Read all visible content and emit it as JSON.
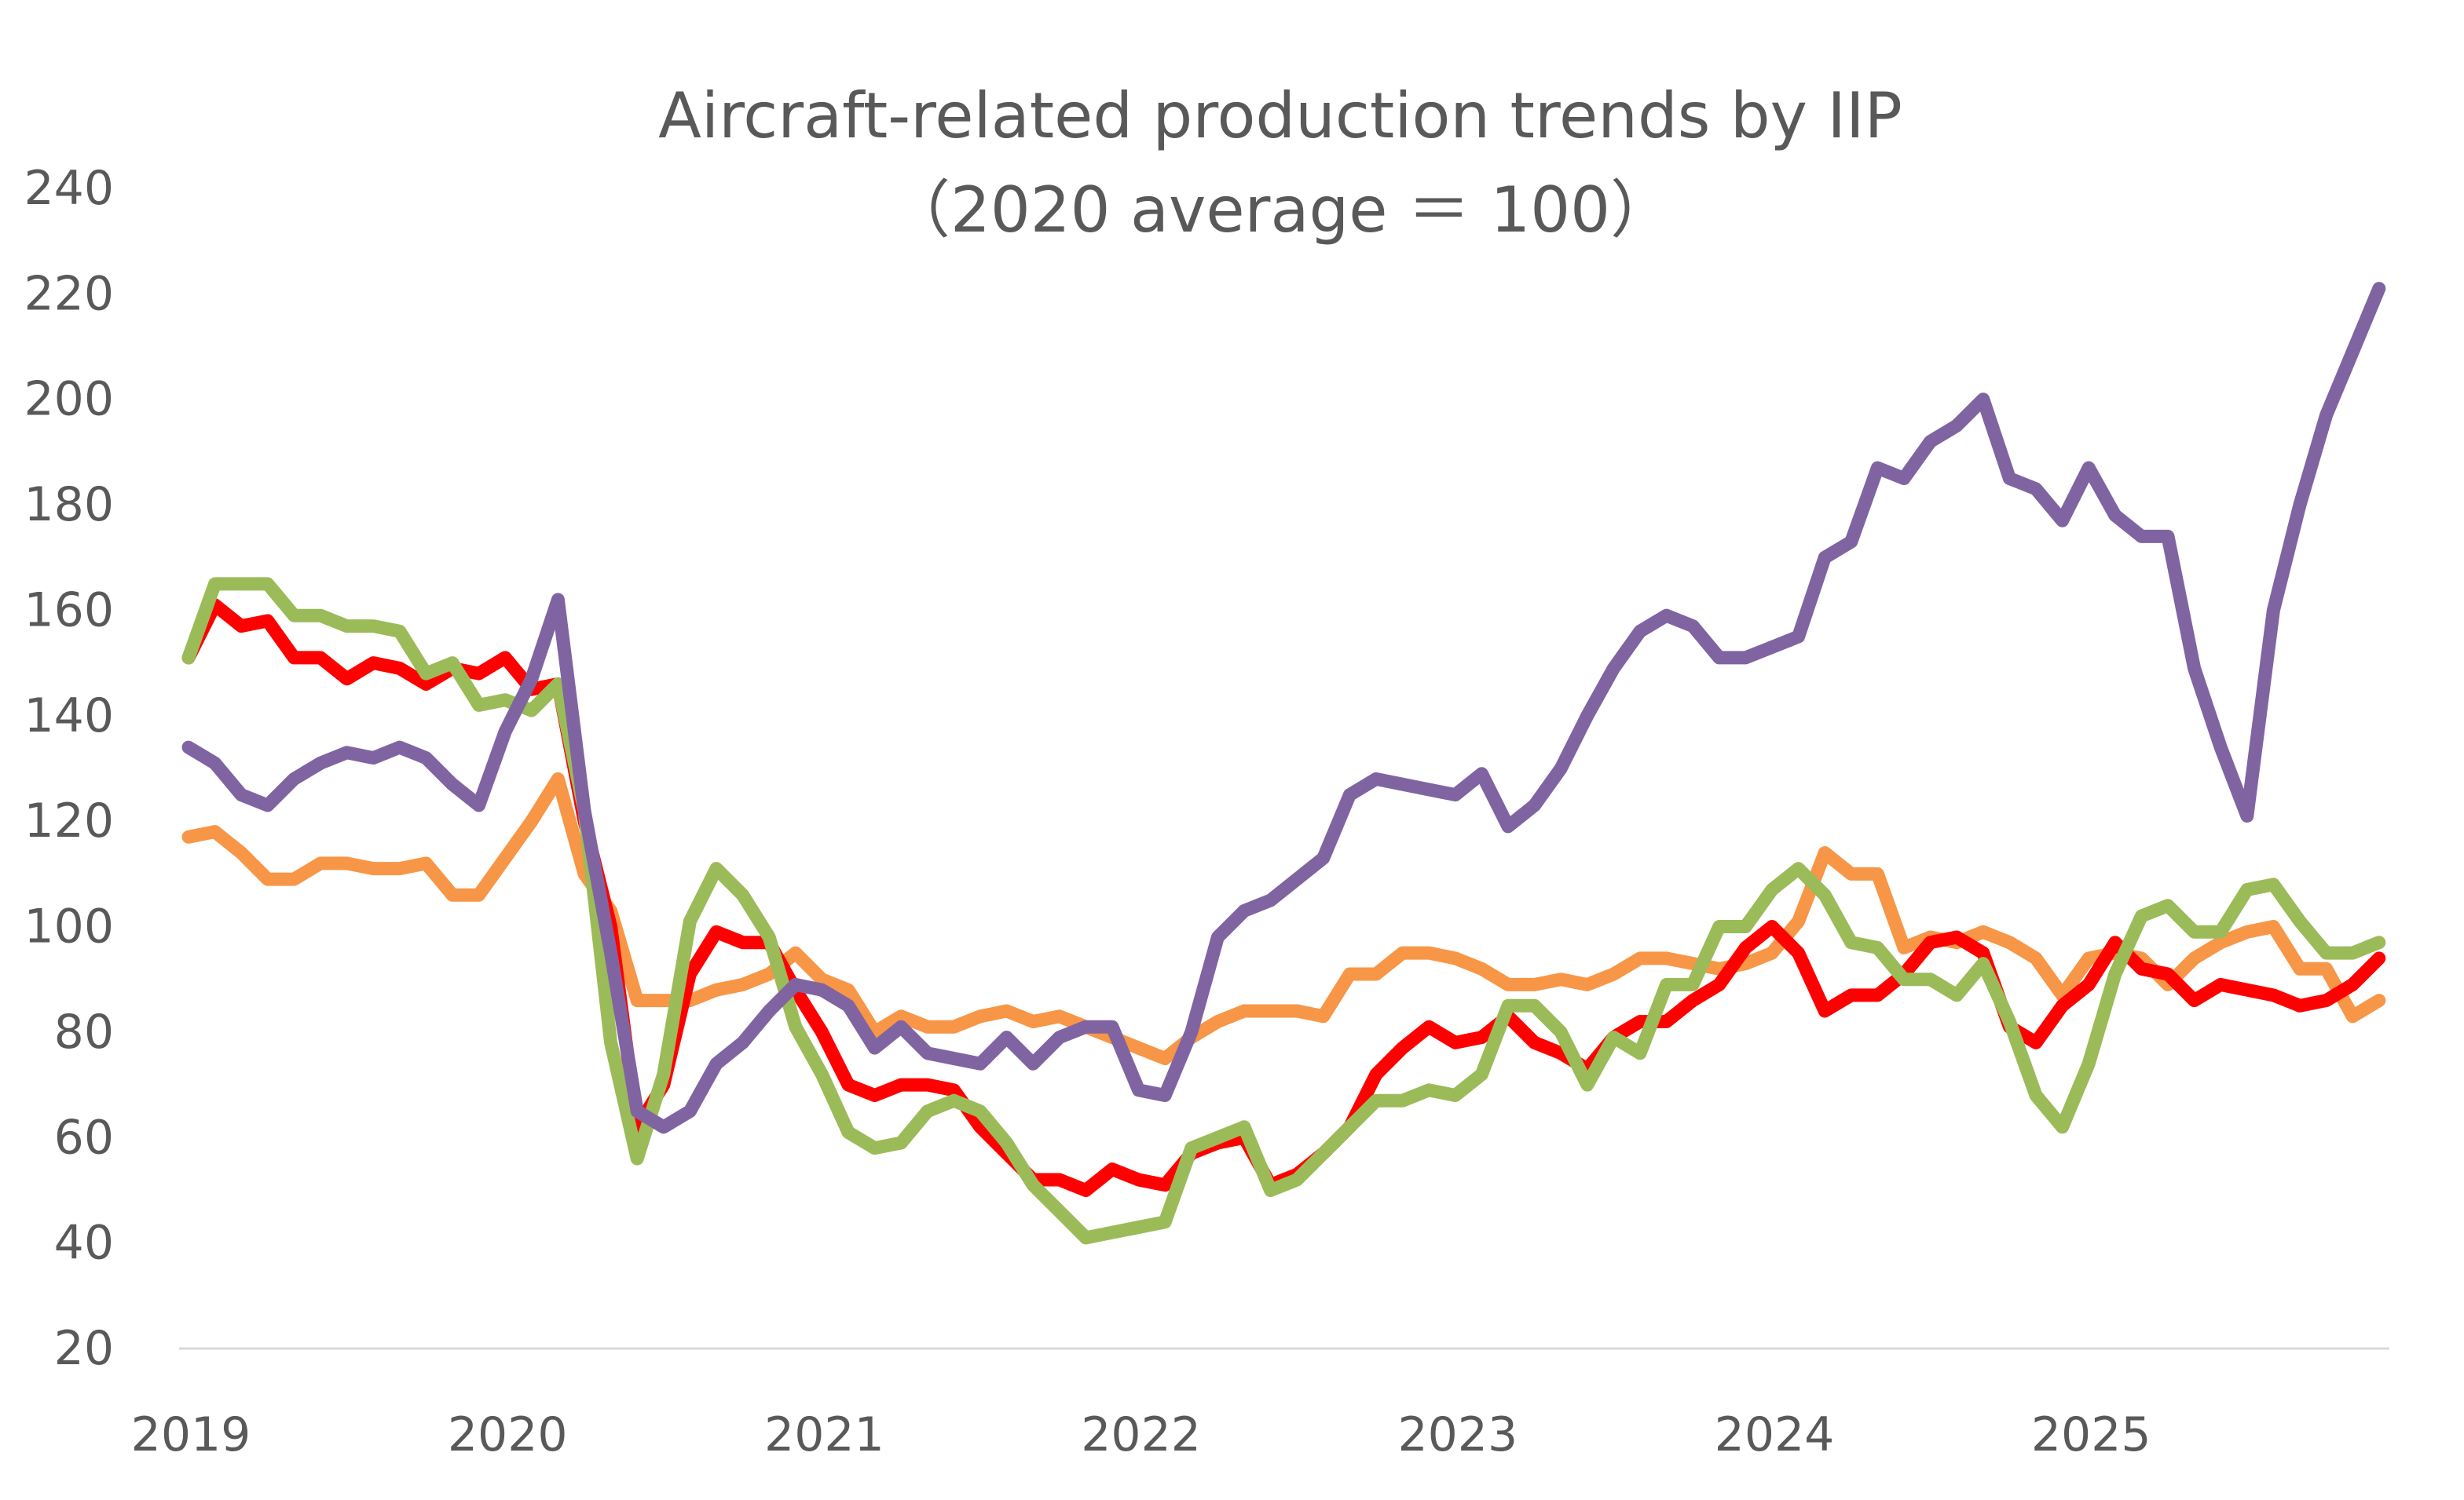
{
  "chart_data": {
    "type": "line",
    "title": "Aircraft-related production trends by IIP",
    "subtitle": "（2020 average ＝ 100）",
    "xlabel": "",
    "ylabel": "",
    "ylim": [
      20,
      240
    ],
    "yticks": [
      20,
      40,
      60,
      80,
      100,
      120,
      140,
      160,
      180,
      200,
      220,
      240
    ],
    "xtick_labels": [
      "2019",
      "2020",
      "2021",
      "2022",
      "2023",
      "2024",
      "2025"
    ],
    "grid": false,
    "legend": "none",
    "x": [
      "2019-01",
      "2019-02",
      "2019-03",
      "2019-04",
      "2019-05",
      "2019-06",
      "2019-07",
      "2019-08",
      "2019-09",
      "2019-10",
      "2019-11",
      "2019-12",
      "2020-01",
      "2020-02",
      "2020-03",
      "2020-04",
      "2020-05",
      "2020-06",
      "2020-07",
      "2020-08",
      "2020-09",
      "2020-10",
      "2020-11",
      "2020-12",
      "2021-01",
      "2021-02",
      "2021-03",
      "2021-04",
      "2021-05",
      "2021-06",
      "2021-07",
      "2021-08",
      "2021-09",
      "2021-10",
      "2021-11",
      "2021-12",
      "2022-01",
      "2022-02",
      "2022-03",
      "2022-04",
      "2022-05",
      "2022-06",
      "2022-07",
      "2022-08",
      "2022-09",
      "2022-10",
      "2022-11",
      "2022-12",
      "2023-01",
      "2023-02",
      "2023-03",
      "2023-04",
      "2023-05",
      "2023-06",
      "2023-07",
      "2023-08",
      "2023-09",
      "2023-10",
      "2023-11",
      "2023-12",
      "2024-01",
      "2024-02",
      "2024-03",
      "2024-04",
      "2024-05",
      "2024-06",
      "2024-07",
      "2024-08",
      "2024-09",
      "2024-10",
      "2024-11",
      "2024-12",
      "2025-01",
      "2025-02",
      "2025-03",
      "2025-04",
      "2025-05",
      "2025-06",
      "2025-07",
      "2025-08",
      "2025-09",
      "2025-10",
      "2025-11",
      "2025-12"
    ],
    "series": [
      {
        "color": "#F79646",
        "values": [
          117,
          118,
          114,
          109,
          109,
          112,
          112,
          111,
          111,
          112,
          106,
          106,
          113,
          120,
          128,
          110,
          103,
          86,
          86,
          86,
          88,
          89,
          91,
          95,
          90,
          88,
          80,
          83,
          81,
          81,
          83,
          84,
          82,
          83,
          81,
          79,
          77,
          75,
          79,
          82,
          84,
          84,
          84,
          83,
          91,
          91,
          95,
          95,
          94,
          92,
          89,
          89,
          90,
          89,
          91,
          94,
          94,
          93,
          92,
          93,
          95,
          101,
          114,
          110,
          110,
          96,
          98,
          97,
          99,
          97,
          94,
          87,
          94,
          95,
          94,
          89,
          94,
          97,
          99,
          100,
          92,
          92,
          83,
          86
        ]
      },
      {
        "color": "#FF0000",
        "values": [
          151,
          161,
          157,
          158,
          151,
          151,
          147,
          150,
          149,
          146,
          149,
          148,
          151,
          145,
          146,
          120,
          100,
          62,
          70,
          91,
          99,
          97,
          97,
          88,
          80,
          70,
          68,
          70,
          70,
          69,
          62,
          57,
          52,
          52,
          50,
          54,
          52,
          51,
          57,
          59,
          60,
          51,
          53,
          57,
          62,
          72,
          77,
          81,
          78,
          79,
          83,
          78,
          76,
          73,
          79,
          82,
          82,
          86,
          89,
          96,
          100,
          95,
          84,
          87,
          87,
          91,
          97,
          98,
          95,
          81,
          78,
          85,
          89,
          97,
          92,
          91,
          86,
          89,
          88,
          87,
          85,
          86,
          89,
          94
        ]
      },
      {
        "color": "#9BBB59",
        "values": [
          151,
          165,
          165,
          165,
          159,
          159,
          157,
          157,
          156,
          148,
          150,
          142,
          143,
          141,
          146,
          122,
          78,
          56,
          72,
          101,
          111,
          106,
          98,
          81,
          72,
          61,
          58,
          59,
          65,
          67,
          65,
          59,
          51,
          46,
          41,
          42,
          43,
          44,
          58,
          60,
          62,
          50,
          52,
          57,
          62,
          67,
          67,
          69,
          68,
          72,
          85,
          85,
          80,
          70,
          79,
          76,
          89,
          89,
          100,
          100,
          107,
          111,
          106,
          97,
          96,
          90,
          90,
          87,
          93,
          82,
          68,
          62,
          74,
          91,
          102,
          104,
          99,
          99,
          107,
          108,
          101,
          95,
          95,
          97
        ]
      },
      {
        "color": "#8064A2",
        "values": [
          134,
          131,
          125,
          123,
          128,
          131,
          133,
          132,
          134,
          132,
          127,
          123,
          137,
          147,
          162,
          122,
          95,
          65,
          62,
          65,
          74,
          78,
          84,
          89,
          88,
          85,
          77,
          81,
          76,
          75,
          74,
          79,
          74,
          79,
          81,
          81,
          69,
          68,
          80,
          98,
          103,
          105,
          109,
          113,
          125,
          128,
          127,
          126,
          125,
          129,
          119,
          123,
          130,
          140,
          149,
          156,
          159,
          157,
          151,
          151,
          153,
          155,
          170,
          173,
          187,
          185,
          192,
          195,
          200,
          185,
          183,
          177,
          187,
          178,
          174,
          174,
          149,
          134,
          121,
          160,
          180,
          197,
          209,
          221
        ]
      }
    ]
  }
}
